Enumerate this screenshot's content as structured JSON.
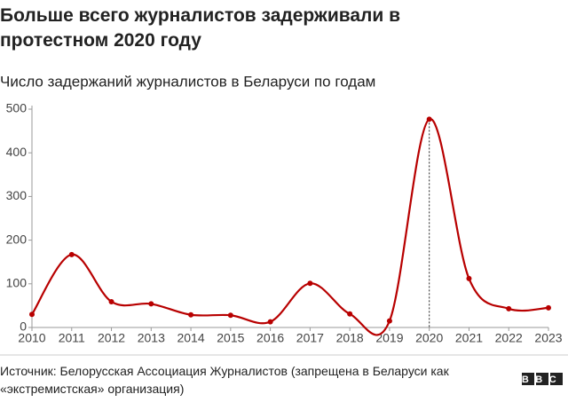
{
  "chart_data": {
    "type": "line",
    "title": "Больше всего журналистов задерживали в протестном 2020 году",
    "subtitle": "Число задержаний журналистов в Беларуси по годам",
    "source": "Источник: Белорусская Ассоциация Журналистов (запрещена в Беларуси как «экстремистская» организация)",
    "logo": "BBC",
    "x": [
      2010,
      2011,
      2012,
      2013,
      2014,
      2015,
      2016,
      2017,
      2018,
      2019,
      2020,
      2021,
      2022,
      2023
    ],
    "series": [
      {
        "color": "#b80000",
        "values": [
          30,
          167,
          59,
          54,
          29,
          28,
          13,
          101,
          31,
          15,
          477,
          112,
          43,
          45
        ]
      }
    ],
    "xlim": [
      2010,
      2023
    ],
    "xticks": [
      2010,
      2011,
      2012,
      2013,
      2014,
      2015,
      2016,
      2017,
      2018,
      2019,
      2020,
      2021,
      2022,
      2023
    ],
    "ylim": [
      0,
      500
    ],
    "yticks": [
      0,
      100,
      200,
      300,
      400,
      500
    ],
    "grid": false
  }
}
